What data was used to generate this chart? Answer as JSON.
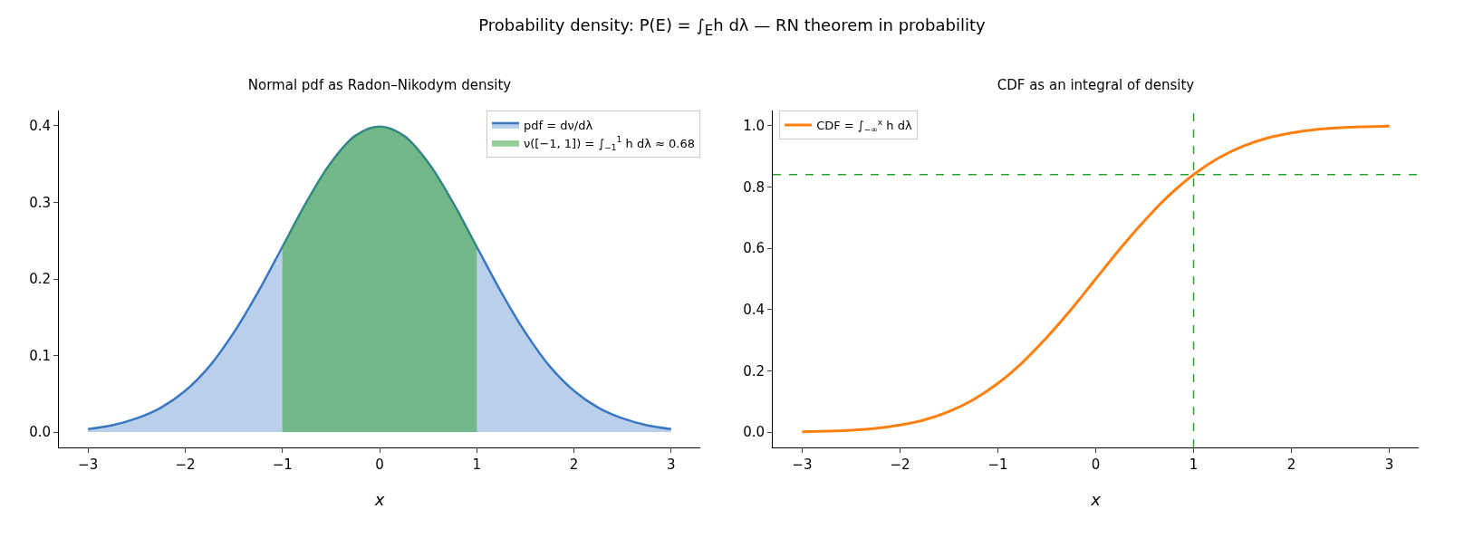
{
  "chart_data": [
    {
      "type": "area",
      "title": "Normal pdf as Radon–Nikodym density",
      "xlabel": "x",
      "annotations": [
        "Probability density: P(E) = ∫$_{E}$h dλ — RN theorem in probability"
      ],
      "x": [
        -3,
        -2.75,
        -2.5,
        -2.25,
        -2,
        -1.75,
        -1.5,
        -1.25,
        -1,
        -0.75,
        -0.5,
        -0.25,
        0,
        0.25,
        0.5,
        0.75,
        1,
        1.25,
        1.5,
        1.75,
        2,
        2.25,
        2.5,
        2.75,
        3
      ],
      "series": [
        {
          "name": "pdf = dν/dλ",
          "color": "#3a78c2",
          "values": [
            0.004,
            0.009,
            0.018,
            0.032,
            0.054,
            0.086,
            0.13,
            0.183,
            0.242,
            0.301,
            0.352,
            0.387,
            0.399,
            0.387,
            0.352,
            0.301,
            0.242,
            0.183,
            0.13,
            0.086,
            0.054,
            0.032,
            0.018,
            0.009,
            0.004
          ]
        },
        {
          "name": "ν([−1, 1]) = ∫$_{−1}$$^{1}$ h dλ ≈ 0.68",
          "color": "#2ca02c",
          "x": [
            -1,
            -0.75,
            -0.5,
            -0.25,
            0,
            0.25,
            0.5,
            0.75,
            1
          ],
          "values": [
            0.242,
            0.301,
            0.352,
            0.387,
            0.399,
            0.387,
            0.352,
            0.301,
            0.242
          ]
        }
      ],
      "xlim": [
        -3.3,
        3.3
      ],
      "ylim": [
        -0.02,
        0.42
      ],
      "xticks": [
        {
          "value": -3,
          "label": "−3"
        },
        {
          "value": -2,
          "label": "−2"
        },
        {
          "value": -1,
          "label": "−1"
        },
        {
          "value": 0,
          "label": "0"
        },
        {
          "value": 1,
          "label": "1"
        },
        {
          "value": 2,
          "label": "2"
        },
        {
          "value": 3,
          "label": "3"
        }
      ],
      "yticks": [
        {
          "value": 0,
          "label": "0.0"
        },
        {
          "value": 0.1,
          "label": "0.1"
        },
        {
          "value": 0.2,
          "label": "0.2"
        },
        {
          "value": 0.3,
          "label": "0.3"
        },
        {
          "value": 0.4,
          "label": "0.4"
        }
      ],
      "grid": false,
      "legend": "top right"
    },
    {
      "type": "line",
      "title": "CDF as an integral of density",
      "xlabel": "x",
      "x": [
        -3,
        -2.75,
        -2.5,
        -2.25,
        -2,
        -1.75,
        -1.5,
        -1.25,
        -1,
        -0.75,
        -0.5,
        -0.25,
        0,
        0.25,
        0.5,
        0.75,
        1,
        1.25,
        1.5,
        1.75,
        2,
        2.25,
        2.5,
        2.75,
        3
      ],
      "series": [
        {
          "name": "CDF = ∫$_{−∞}$$^{x}$ h dλ",
          "color": "#ff7f0e",
          "values": [
            0.001,
            0.003,
            0.006,
            0.012,
            0.023,
            0.04,
            0.067,
            0.106,
            0.159,
            0.227,
            0.309,
            0.401,
            0.5,
            0.599,
            0.691,
            0.773,
            0.841,
            0.894,
            0.933,
            0.96,
            0.977,
            0.988,
            0.994,
            0.997,
            0.999
          ]
        }
      ],
      "ref_lines": [
        {
          "axis": "x",
          "value": 1,
          "color": "#2ca02c",
          "line_style": "dashed"
        },
        {
          "axis": "y",
          "value": 0.841,
          "color": "#2ca02c",
          "line_style": "dashed"
        }
      ],
      "xlim": [
        -3.3,
        3.3
      ],
      "ylim": [
        -0.05,
        1.05
      ],
      "xticks": [
        {
          "value": -3,
          "label": "−3"
        },
        {
          "value": -2,
          "label": "−2"
        },
        {
          "value": -1,
          "label": "−1"
        },
        {
          "value": 0,
          "label": "0"
        },
        {
          "value": 1,
          "label": "1"
        },
        {
          "value": 2,
          "label": "2"
        },
        {
          "value": 3,
          "label": "3"
        }
      ],
      "yticks": [
        {
          "value": 0,
          "label": "0.0"
        },
        {
          "value": 0.2,
          "label": "0.2"
        },
        {
          "value": 0.4,
          "label": "0.4"
        },
        {
          "value": 0.6,
          "label": "0.6"
        },
        {
          "value": 0.8,
          "label": "0.8"
        },
        {
          "value": 1,
          "label": "1.0"
        }
      ],
      "grid": false,
      "legend": "top left"
    }
  ]
}
